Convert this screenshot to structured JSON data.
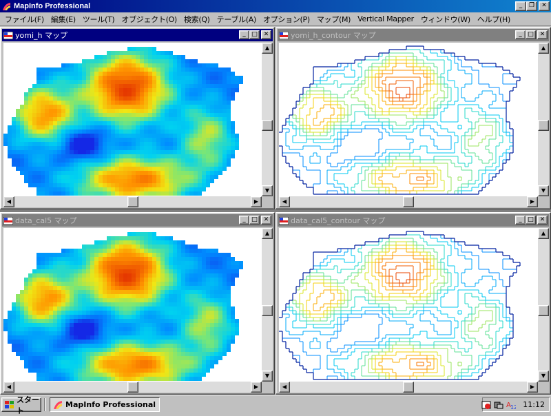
{
  "app": {
    "title": "MapInfo Professional",
    "icon": "mapinfo-logo-icon",
    "caption_buttons": [
      "minimize",
      "restore",
      "close"
    ]
  },
  "menubar": {
    "items": [
      "ファイル(F)",
      "編集(E)",
      "ツール(T)",
      "オブジェクト(O)",
      "検索(Q)",
      "テーブル(A)",
      "オプション(P)",
      "マップ(M)",
      "Vertical Mapper",
      "ウィンドウ(W)",
      "ヘルプ(H)"
    ]
  },
  "windows": [
    {
      "id": "w1",
      "title": "yomi_h マップ",
      "type": "raster",
      "state": "active"
    },
    {
      "id": "w2",
      "title": "yomi_h_contour マップ",
      "type": "contour",
      "state": "inactive"
    },
    {
      "id": "w3",
      "title": "data_cal5 マップ",
      "type": "raster",
      "state": "inactive"
    },
    {
      "id": "w4",
      "title": "data_cal5_contour マップ",
      "type": "contour",
      "state": "inactive"
    }
  ],
  "colors": {
    "title_active": "#000080",
    "title_inactive": "#808080",
    "elev_low": "#1030e0",
    "elev_mid": "#f0e000",
    "elev_high": "#e03000"
  },
  "taskbar": {
    "start_label": "スタート",
    "task_label": "MapInfo Professional",
    "clock": "11:12",
    "tray_icons": [
      "schedule-icon",
      "network-icon",
      "ime-icon"
    ]
  }
}
